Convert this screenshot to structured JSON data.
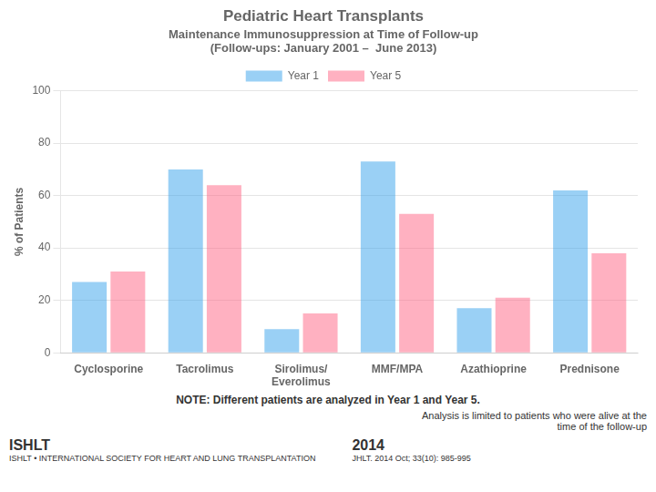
{
  "chart_data": {
    "type": "bar",
    "title": "Pediatric Heart Transplants",
    "subtitle": [
      "Maintenance Immunosuppression at Time of Follow-up",
      "(Follow-ups: January 2001 –  June 2013)"
    ],
    "categories": [
      "Cyclosporine",
      "Tacrolimus",
      "Sirolimus/\nEverolimus",
      "MMF/MPA",
      "Azathioprine",
      "Prednisone"
    ],
    "series": [
      {
        "name": "Year 1",
        "values": [
          27,
          70,
          9,
          73,
          17,
          62
        ]
      },
      {
        "name": "Year 5",
        "values": [
          31,
          64,
          15,
          53,
          21,
          38
        ]
      }
    ],
    "ylabel": "% of Patients",
    "ylim": [
      0,
      100
    ],
    "yticks": [
      0,
      20,
      40,
      60,
      80,
      100
    ],
    "grid": true,
    "legend": "top",
    "annotations": [
      "NOTE: Different patients are analyzed in Year 1 and Year 5.",
      "Analysis is limited to patients who were alive at the\ntime of the follow-up",
      "ISHLT",
      "ISHLT • INTERNATIONAL SOCIETY FOR HEART AND LUNG TRANSPLANTATION",
      "2014",
      "JHLT. 2014 Oct; 33(10): 985-995"
    ]
  }
}
